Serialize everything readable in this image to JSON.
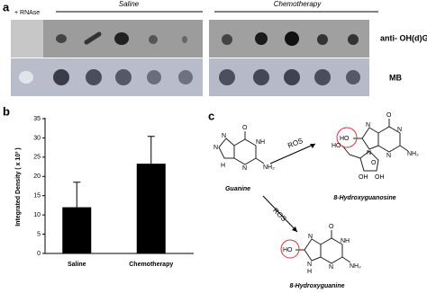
{
  "panel_a": {
    "label": "a",
    "control": "+ RNAse",
    "groups": [
      "Saline",
      "Chemotherapy"
    ],
    "rows": [
      "anti- OH(d)G",
      "MB"
    ]
  },
  "chart_data": {
    "type": "bar",
    "label": "b",
    "ylabel": "Integrated Density ( x 10³ )",
    "categories": [
      "Saline",
      "Chemotherapy"
    ],
    "values": [
      12,
      23.3
    ],
    "errors": [
      6.5,
      7.1
    ],
    "color": "#000000",
    "ylim": [
      0,
      35
    ],
    "yticks": [
      0,
      5,
      10,
      15,
      20,
      25,
      30,
      35
    ]
  },
  "panel_c": {
    "label": "c",
    "reaction_labels": [
      "ROS",
      "ROS"
    ],
    "guanine": {
      "name": "Guanine",
      "atoms": [
        "O",
        "N",
        "N",
        "N",
        "H",
        "NH",
        "NH₂"
      ]
    },
    "hydroxyguanosine": {
      "name": "8-Hydroxyguanosine",
      "atoms": [
        "O",
        "N",
        "N",
        "N",
        "N",
        "NH",
        "NH₂",
        "HO",
        "HO",
        "O",
        "OH",
        "OH"
      ]
    },
    "hydroxyguanine": {
      "name": "8-Hydroxyguanine",
      "atoms": [
        "O",
        "N",
        "N",
        "N",
        "H",
        "NH",
        "NH₂",
        "HO"
      ]
    }
  }
}
